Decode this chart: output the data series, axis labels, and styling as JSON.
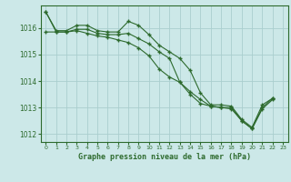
{
  "series1": [
    1016.6,
    1015.9,
    1015.9,
    1016.1,
    1016.1,
    1015.9,
    1015.85,
    1015.85,
    1016.25,
    1016.1,
    1015.75,
    1015.35,
    1015.1,
    1014.85,
    1014.4,
    1013.55,
    1013.1,
    1013.1,
    1013.05,
    1012.55,
    1012.25,
    1013.1,
    1013.35
  ],
  "series2": [
    1015.85,
    1015.85,
    1015.85,
    1015.95,
    1015.95,
    1015.8,
    1015.75,
    1015.75,
    1015.8,
    1015.6,
    1015.4,
    1015.1,
    1014.85,
    1013.95,
    1013.5,
    1013.15,
    1013.05,
    1013.0,
    1013.0,
    1012.5,
    1012.2,
    1013.0,
    1013.35
  ],
  "series3": [
    1016.6,
    1015.85,
    1015.85,
    1015.9,
    1015.8,
    1015.7,
    1015.65,
    1015.55,
    1015.45,
    1015.25,
    1014.95,
    1014.45,
    1014.15,
    1013.95,
    1013.6,
    1013.3,
    1013.05,
    1013.0,
    1012.95,
    1012.5,
    1012.2,
    1012.95,
    1013.3
  ],
  "x": [
    0,
    1,
    2,
    3,
    4,
    5,
    6,
    7,
    8,
    9,
    10,
    11,
    12,
    13,
    14,
    15,
    16,
    17,
    18,
    19,
    20,
    21,
    22
  ],
  "line_color": "#2d6a2d",
  "bg_color": "#cce8e8",
  "grid_color": "#aacece",
  "xlabel": "Graphe pression niveau de la mer (hPa)",
  "ylim": [
    1011.7,
    1016.85
  ],
  "yticks": [
    1012,
    1013,
    1014,
    1015,
    1016
  ],
  "xticks": [
    0,
    1,
    2,
    3,
    4,
    5,
    6,
    7,
    8,
    9,
    10,
    11,
    12,
    13,
    14,
    15,
    16,
    17,
    18,
    19,
    20,
    21,
    22,
    23
  ]
}
